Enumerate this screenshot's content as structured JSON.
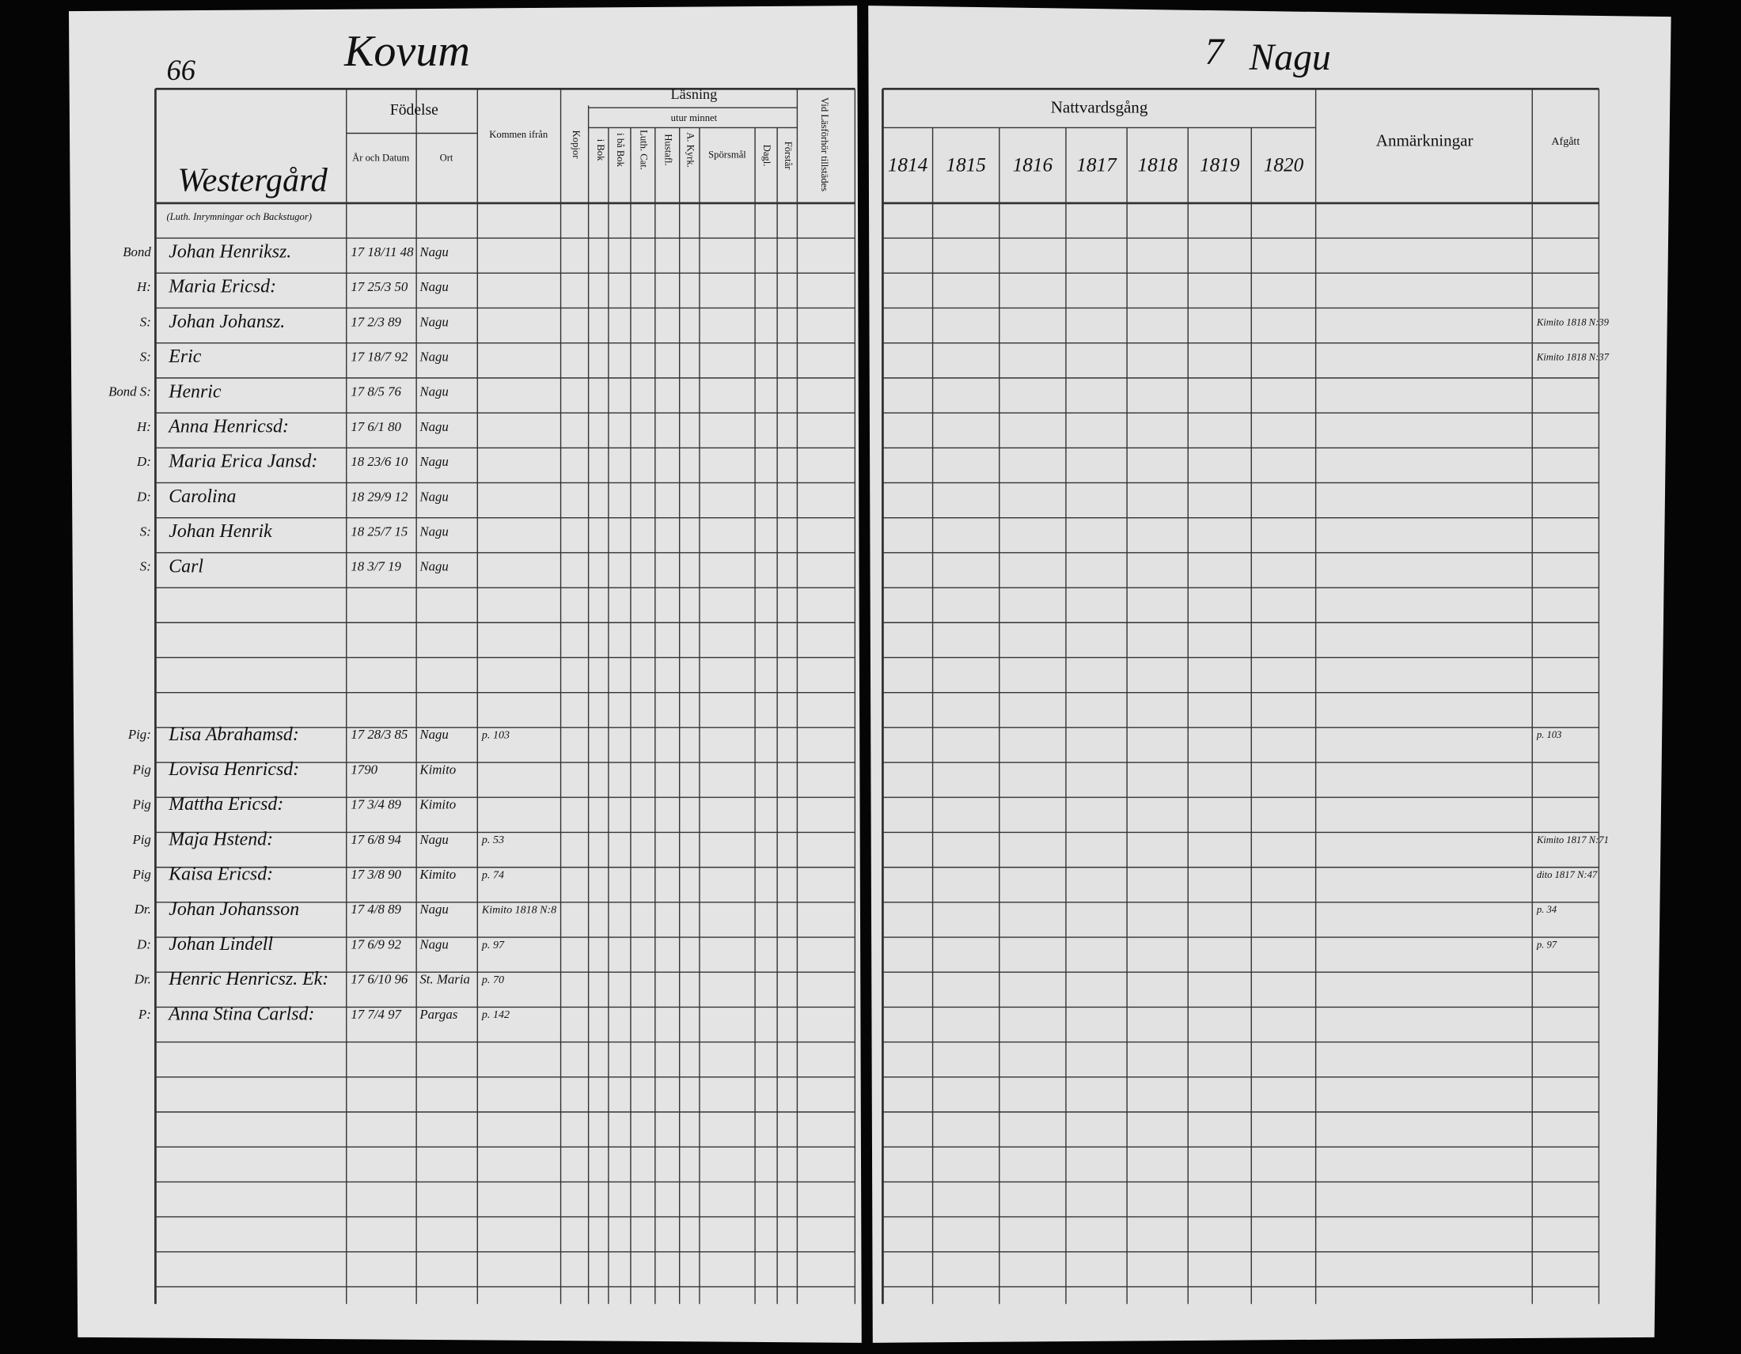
{
  "left_page": {
    "page_number": "66",
    "heading": "Kovum",
    "farm": "Westergård",
    "farm_note": "(Luth. Inrymningar och Backstugor)",
    "headers": {
      "birth": "Födelse",
      "date": "År och Datum",
      "place": "Ort",
      "came_from": "Kommen ifrån",
      "vaccinated": "Kopjor",
      "reading": "Läsning",
      "by_heart": "utur minnet",
      "in_book": "i Bok",
      "both_books": "i bå Bok",
      "catechism": "Luth. Cat.",
      "house_table": "Hustafl.",
      "church_history": "A. Kyrk.",
      "questions": "Spörsmål",
      "daily": "Dagl.",
      "understands": "Förstår",
      "present": "Vid Läsförhör tillstädes"
    },
    "household": [
      {
        "role": "Bond",
        "name": "Johan Henriksz.",
        "born": "17 18/11 48",
        "place": "Nagu"
      },
      {
        "role": "H:",
        "name": "Maria Ericsd:",
        "born": "17 25/3 50",
        "place": "Nagu"
      },
      {
        "role": "S:",
        "name": "Johan Johansz.",
        "born": "17 2/3 89",
        "place": "Nagu",
        "remark": "Kimito 1818 N:39"
      },
      {
        "role": "S:",
        "name": "Eric",
        "born": "17 18/7 92",
        "place": "Nagu",
        "remark": "Kimito 1818 N:37"
      },
      {
        "role": "Bond S:",
        "name": "Henric",
        "born": "17 8/5 76",
        "place": "Nagu"
      },
      {
        "role": "H:",
        "name": "Anna Henricsd:",
        "born": "17 6/1 80",
        "place": "Nagu"
      },
      {
        "role": "D:",
        "name": "Maria Erica Jansd:",
        "born": "18 23/6 10",
        "place": "Nagu"
      },
      {
        "role": "D:",
        "name": "Carolina",
        "born": "18 29/9 12",
        "place": "Nagu"
      },
      {
        "role": "S:",
        "name": "Johan Henrik",
        "born": "18 25/7 15",
        "place": "Nagu"
      },
      {
        "role": "S:",
        "name": "Carl",
        "born": "18 3/7 19",
        "place": "Nagu"
      }
    ],
    "servants": [
      {
        "role": "Pig:",
        "name": "Lisa Abrahamsd:",
        "born": "17 28/3 85",
        "place": "Nagu",
        "came_from": "p. 103",
        "remark": "p. 103"
      },
      {
        "role": "Pig",
        "name": "Lovisa Henricsd:",
        "born": "1790",
        "place": "Kimito"
      },
      {
        "role": "Pig",
        "name": "Mattha Ericsd:",
        "born": "17 3/4 89",
        "place": "Kimito"
      },
      {
        "role": "Pig",
        "name": "Maja Hstend:",
        "born": "17 6/8 94",
        "place": "Nagu",
        "came_from": "p. 53",
        "remark": "Kimito 1817 N:71"
      },
      {
        "role": "Pig",
        "name": "Kaisa Ericsd:",
        "born": "17 3/8 90",
        "place": "Kimito",
        "came_from": "p. 74",
        "remark": "dito 1817 N:47"
      },
      {
        "role": "Dr.",
        "name": "Johan Johansson",
        "born": "17 4/8 89",
        "place": "Nagu",
        "came_from": "Kimito 1818 N:8",
        "remark": "p. 34"
      },
      {
        "role": "D:",
        "name": "Johan Lindell",
        "born": "17 6/9 92",
        "place": "Nagu",
        "came_from": "p. 97",
        "remark": "p. 97"
      },
      {
        "role": "Dr.",
        "name": "Henric Henricsz. Ek:",
        "born": "17 6/10 96",
        "place": "St. Maria",
        "came_from": "p. 70"
      },
      {
        "role": "P:",
        "name": "Anna Stina Carlsd:",
        "born": "17 7/4 97",
        "place": "Pargas",
        "came_from": "p. 142"
      }
    ]
  },
  "right_page": {
    "page_number": "7",
    "heading": "Nagu",
    "communion": "Nattvardsgång",
    "years": [
      "1814",
      "1815",
      "1816",
      "1817",
      "1818",
      "1819",
      "1820"
    ],
    "remarks": "Anmärkningar",
    "departed": "Afgått"
  }
}
